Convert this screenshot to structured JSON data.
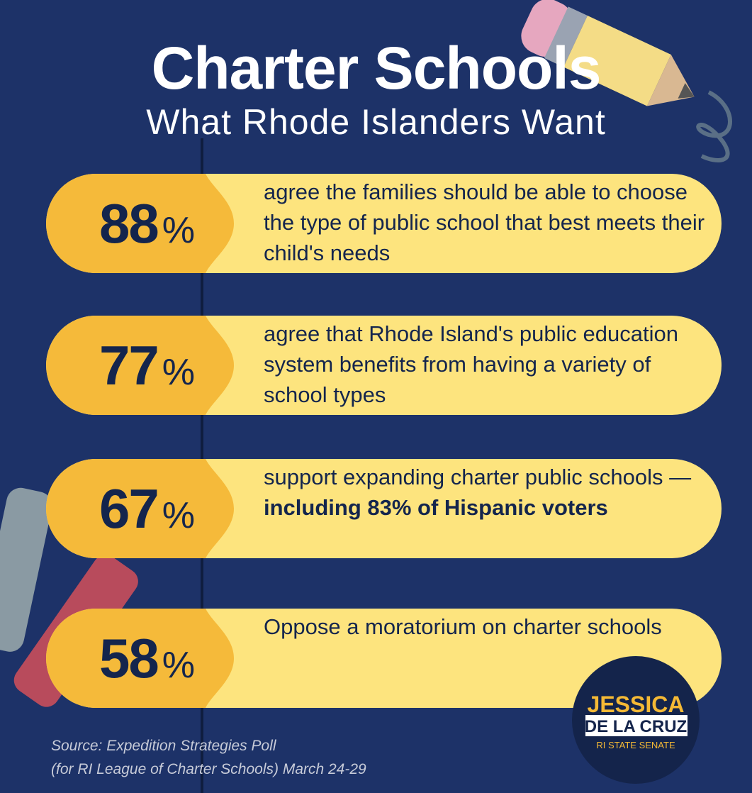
{
  "header": {
    "title": "Charter Schools",
    "subtitle": "What Rhode Islanders Want"
  },
  "items": [
    {
      "value": "88",
      "unit": "%",
      "text": "agree the families should be able to choose the type of public school that best meets their child's needs"
    },
    {
      "value": "77",
      "unit": "%",
      "text": "agree that Rhode Island's public education system benefits from having a variety of school types"
    },
    {
      "value": "67",
      "unit": "%",
      "text": "support expanding charter public schools —",
      "bold": "including 83% of Hispanic voters"
    },
    {
      "value": "58",
      "unit": "%",
      "text": "Oppose a moratorium on charter schools"
    }
  ],
  "source": [
    "Source: Expedition Strategies Poll",
    "(for RI League of Charter Schools) March 24-29"
  ],
  "logo": {
    "name": "JESSICA",
    "surname": "DE LA CRUZ",
    "office": "RI STATE SENATE"
  }
}
